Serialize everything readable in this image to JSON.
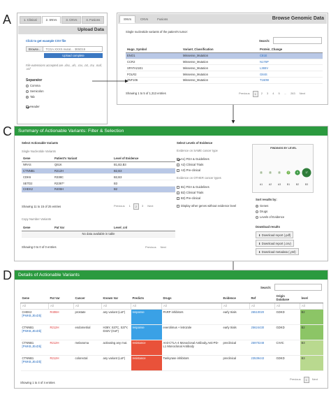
{
  "panels": {
    "a": "A",
    "b": "B",
    "c": "C",
    "d": "D"
  },
  "panel_a": {
    "tabs": [
      "1. Clinical",
      "2. SNVs",
      "3. CNVs",
      "4. Fusions"
    ],
    "title": "Upload Data",
    "example_link": "Click to get example CSV file",
    "browse_label": "Browse...",
    "file_name": "TCGA.XXXX.mutat.... 3E5D19",
    "upload_status": "Upload complete",
    "ext_note": "File extensions accepted are .xlsx, .xls, .csv, .txt, .tsv, .maf, .vcf",
    "separator_label": "Separator",
    "separators": [
      "Comma",
      "Semicolon",
      "Tab"
    ],
    "header_label": "Header"
  },
  "panel_b": {
    "tabs": [
      "SNVs",
      "CNVs",
      "Fusions"
    ],
    "title": "Browse Genomic Data",
    "subtitle": "Single nucleotide variants of the patient's tumor:",
    "search_label": "Search:",
    "columns": [
      "Hugo_Symbol",
      "Variant_Classification",
      "Protein_Change"
    ],
    "rows": [
      {
        "gene": "ENO1",
        "cls": "Missense_Mutation",
        "prot": "C81E"
      },
      {
        "gene": "CCR2",
        "cls": "Missense_Mutation",
        "prot": "N176P"
      },
      {
        "gene": "SPATA21E1",
        "cls": "Missense_Mutation",
        "prot": "L365V"
      },
      {
        "gene": "FOLR2",
        "cls": "Missense_Mutation",
        "prot": "G84S"
      },
      {
        "gene": "ZNF106",
        "cls": "Missense_Mutation",
        "prot": "T1609I"
      }
    ],
    "info": "Showing 1 to 5 of 1,313 entries",
    "pager": [
      "Previous",
      "1",
      "2",
      "3",
      "4",
      "5",
      "...",
      "263",
      "Next"
    ]
  },
  "panel_c": {
    "title": "Summary of Actionable Variants: Filter & Selection",
    "table_title": "Select Actionable Variants",
    "snv_label": "Single Nucleotide Variants",
    "columns": [
      "Gene",
      "Patient's Variant",
      "Level of Evidence"
    ],
    "rows": [
      {
        "gene": "NRAS",
        "var": "Q61K",
        "lvl": "B1,B2,B3"
      },
      {
        "gene": "CTNNB1",
        "var": "R212H",
        "lvl": "B2,B3"
      },
      {
        "gene": "CDK6",
        "var": "R338C",
        "lvl": "B2,B3"
      },
      {
        "gene": "SETD2",
        "var": "R2397*",
        "lvl": "B3"
      },
      {
        "gene": "CHEK2",
        "var": "R406H",
        "lvl": "B2"
      }
    ],
    "info": "Showing 11 to 15 of 25 entries",
    "pager": [
      "Previous",
      "1",
      "2",
      "3",
      "Next"
    ],
    "cnv_label": "Copy Number Variants",
    "cnv_columns": [
      "Gene",
      "Pat Var",
      "Level_cnl"
    ],
    "cnv_empty": "No data available in table",
    "cnv_info": "Showing 0 to 0 of 0 entries",
    "cnv_pager": [
      "Previous",
      "Next"
    ],
    "levels_title": "Select Levels of Evidence",
    "same_cancer_label": "Evidence on SAME cancer type",
    "same_levels": [
      "A1) FDA & Guidelines",
      "A2) Clinical Trials",
      "A3) Pre-clinical"
    ],
    "other_cancer_label": "Evidence on OTHER cancer types",
    "other_levels": [
      "B1) FDA & Guidelines",
      "B2) Clinical Trials",
      "B3) Pre-clinical"
    ],
    "display_other": "Display other genes without evidence level",
    "findings_title": "FINDINGS BY LEVEL",
    "findings_labels": [
      "A1",
      "A2",
      "A3",
      "B1",
      "B2",
      "B3"
    ],
    "findings_values": [
      0,
      0,
      0,
      2,
      6,
      17
    ],
    "sort_label": "Sort results by:",
    "sort_options": [
      "Genes",
      "Drugs",
      "Levels of Evidence"
    ],
    "download_label": "Download results",
    "downloads": [
      "Download report (.pdf)",
      "Download report (.csv)",
      "Download metadata (.yml)"
    ]
  },
  "panel_d": {
    "title": "Details of Actionable Variants",
    "search_label": "Search:",
    "columns": [
      "Gene",
      "Pat Var",
      "Cancer",
      "Known Var",
      "Predicts",
      "Drugs",
      "Evidence",
      "Ref",
      "Origin Database",
      "level"
    ],
    "filter_placeholder": "All",
    "rows": [
      {
        "gene": "CHEK2",
        "gene_links": "[PMKB,JExDb]",
        "var": "R406H",
        "cancer": "prostate",
        "known": "any variant (LoF)",
        "predicts": "response",
        "drugs": "PARP inhibitors",
        "evidence": "early trials",
        "ref": "26510020",
        "db": "GDKD",
        "level": "B2"
      },
      {
        "gene": "CTNNB1",
        "gene_links": "[PMKB,JExDb]",
        "var": "R212H",
        "cancer": "endometrial",
        "known": "H36Y, S37C, S37Y, D32V (GoF)",
        "predicts": "response",
        "drugs": "everolimus + letrozole",
        "evidence": "early trials",
        "ref": "25624430",
        "db": "GDKD",
        "level": "B2"
      },
      {
        "gene": "CTNNB1",
        "gene_links": "[PMKB,JExDb]",
        "var": "R212H",
        "cancer": "melanoma",
        "known": "activating any mut.",
        "predicts": "resistance",
        "drugs": "Anti-CTLA-4 Monoclonal Antibody,Anti-PD-L1 Monoclonal Antibody",
        "evidence": "preclinical",
        "ref": "25970248",
        "db": "CIVIC",
        "level": "B3"
      },
      {
        "gene": "CTNNB1",
        "gene_links": "[PMKB,JExDb]",
        "var": "R212H",
        "cancer": "colorectal",
        "known": "any variant (LoF)",
        "predicts": "resistance",
        "drugs": "Tankyrase inhibitors",
        "evidence": "preclinical",
        "ref": "23539443",
        "db": "GDKD",
        "level": "B3"
      }
    ],
    "info": "Showing 1 to 4 of 4 entries",
    "pager": [
      "Previous",
      "1",
      "Next"
    ]
  },
  "colors": {
    "green_header": "#2b9a3f",
    "highlight_row": "#b9c8e6",
    "response": "#3aa1e6",
    "resistance": "#e9523a"
  }
}
